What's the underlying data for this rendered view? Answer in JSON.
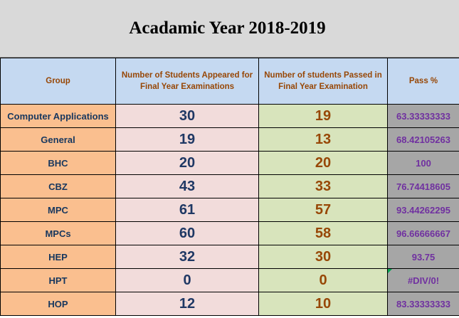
{
  "title": "Acadamic Year 2018-2019",
  "headers": {
    "group": "Group",
    "appeared": "Number of Students Appeared for Final Year Examinations",
    "passed": "Number of students Passed in Final Year Examination",
    "pass_pct": "Pass %"
  },
  "rows": [
    {
      "group": "Computer Applications",
      "appeared": "30",
      "passed": "19",
      "pass_pct": "63.33333333"
    },
    {
      "group": "General",
      "appeared": "19",
      "passed": "13",
      "pass_pct": "68.42105263"
    },
    {
      "group": "BHC",
      "appeared": "20",
      "passed": "20",
      "pass_pct": "100"
    },
    {
      "group": "CBZ",
      "appeared": "43",
      "passed": "33",
      "pass_pct": "76.74418605"
    },
    {
      "group": "MPC",
      "appeared": "61",
      "passed": "57",
      "pass_pct": "93.44262295"
    },
    {
      "group": "MPCs",
      "appeared": "60",
      "passed": "58",
      "pass_pct": "96.66666667"
    },
    {
      "group": "HEP",
      "appeared": "32",
      "passed": "30",
      "pass_pct": "93.75"
    },
    {
      "group": "HPT",
      "appeared": "0",
      "passed": "0",
      "pass_pct": "#DIV/0!"
    },
    {
      "group": "HOP",
      "appeared": "12",
      "passed": "10",
      "pass_pct": "83.33333333"
    }
  ],
  "colors": {
    "title_band": "#d9d9d9",
    "header_fill": "#c5d9f1",
    "header_text": "#974706",
    "group_fill": "#fabf8f",
    "group_text": "#17375e",
    "appeared_fill": "#f2dcdb",
    "appeared_text": "#1f3864",
    "passed_fill": "#d8e4bc",
    "passed_text": "#974706",
    "pct_fill": "#a6a6a6",
    "pct_text": "#7030a0",
    "error_indicator": "#00a650"
  }
}
